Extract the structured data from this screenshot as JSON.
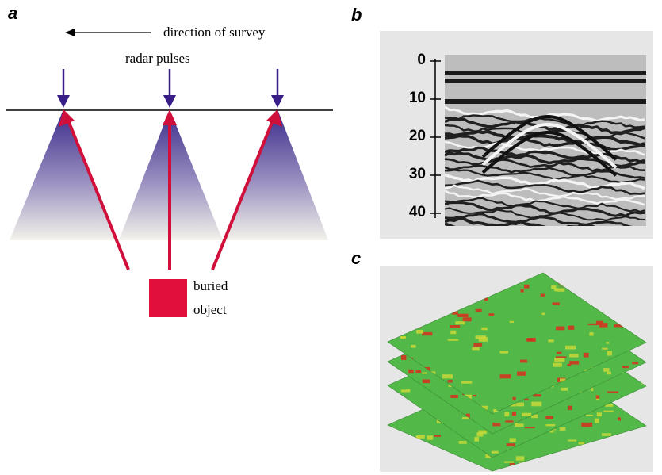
{
  "panels": {
    "a": {
      "letter": "a"
    },
    "b": {
      "letter": "b"
    },
    "c": {
      "letter": "c"
    }
  },
  "diagram_a": {
    "direction_label": "direction of survey",
    "pulses_label": "radar pulses",
    "object_label_line1": "buried",
    "object_label_line2": "object",
    "colors": {
      "cone_top": "#3a2a8a",
      "cone_bottom": "#f3f2ea",
      "ray": "#d0103a",
      "pulse_arrow": "#3a1e88",
      "buried_object": "#e0103a"
    }
  },
  "radargram": {
    "depth_ticks": [
      "0",
      "10",
      "20",
      "30",
      "40"
    ]
  },
  "slices": {
    "count": 4,
    "colors": {
      "base": "#52b848",
      "mid": "#c8d838",
      "hot": "#d82e1e"
    }
  }
}
